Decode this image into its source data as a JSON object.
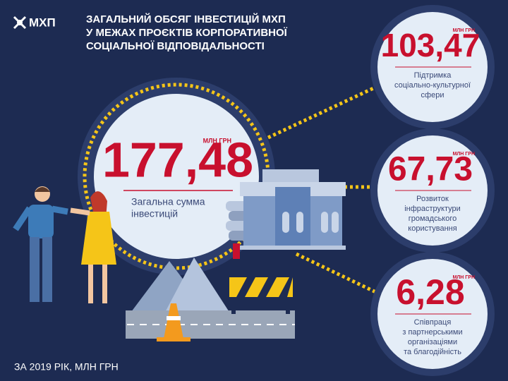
{
  "header": {
    "logo": "МХП",
    "title": [
      "ЗАГАЛЬНИЙ ОБСЯГ ІНВЕСТИЦІЙ МХП",
      "У МЕЖАХ ПРОЄКТІВ КОРПОРАТИВНОЇ",
      "СОЦІАЛЬНОЇ ВІДПОВІДАЛЬНОСТІ"
    ]
  },
  "total": {
    "value": "177,48",
    "unit": "МЛН ГРН",
    "label": [
      "Загальна сумма",
      "інвестицій"
    ]
  },
  "items": [
    {
      "value": "103,47",
      "unit": "МЛН ГРН",
      "label": [
        "Підтримка",
        "соціально-культурної",
        "сфери"
      ]
    },
    {
      "value": "67,73",
      "unit": "МЛН ГРН",
      "label": [
        "Розвиток",
        "інфраструктури",
        "громадського",
        "користування"
      ]
    },
    {
      "value": "6,28",
      "unit": "МЛН ГРН",
      "label": [
        "Співпраця",
        "з партнерськими",
        "організаціями",
        "та благодійність"
      ]
    }
  ],
  "footer": "ЗА 2019 РІК, МЛН ГРН"
}
